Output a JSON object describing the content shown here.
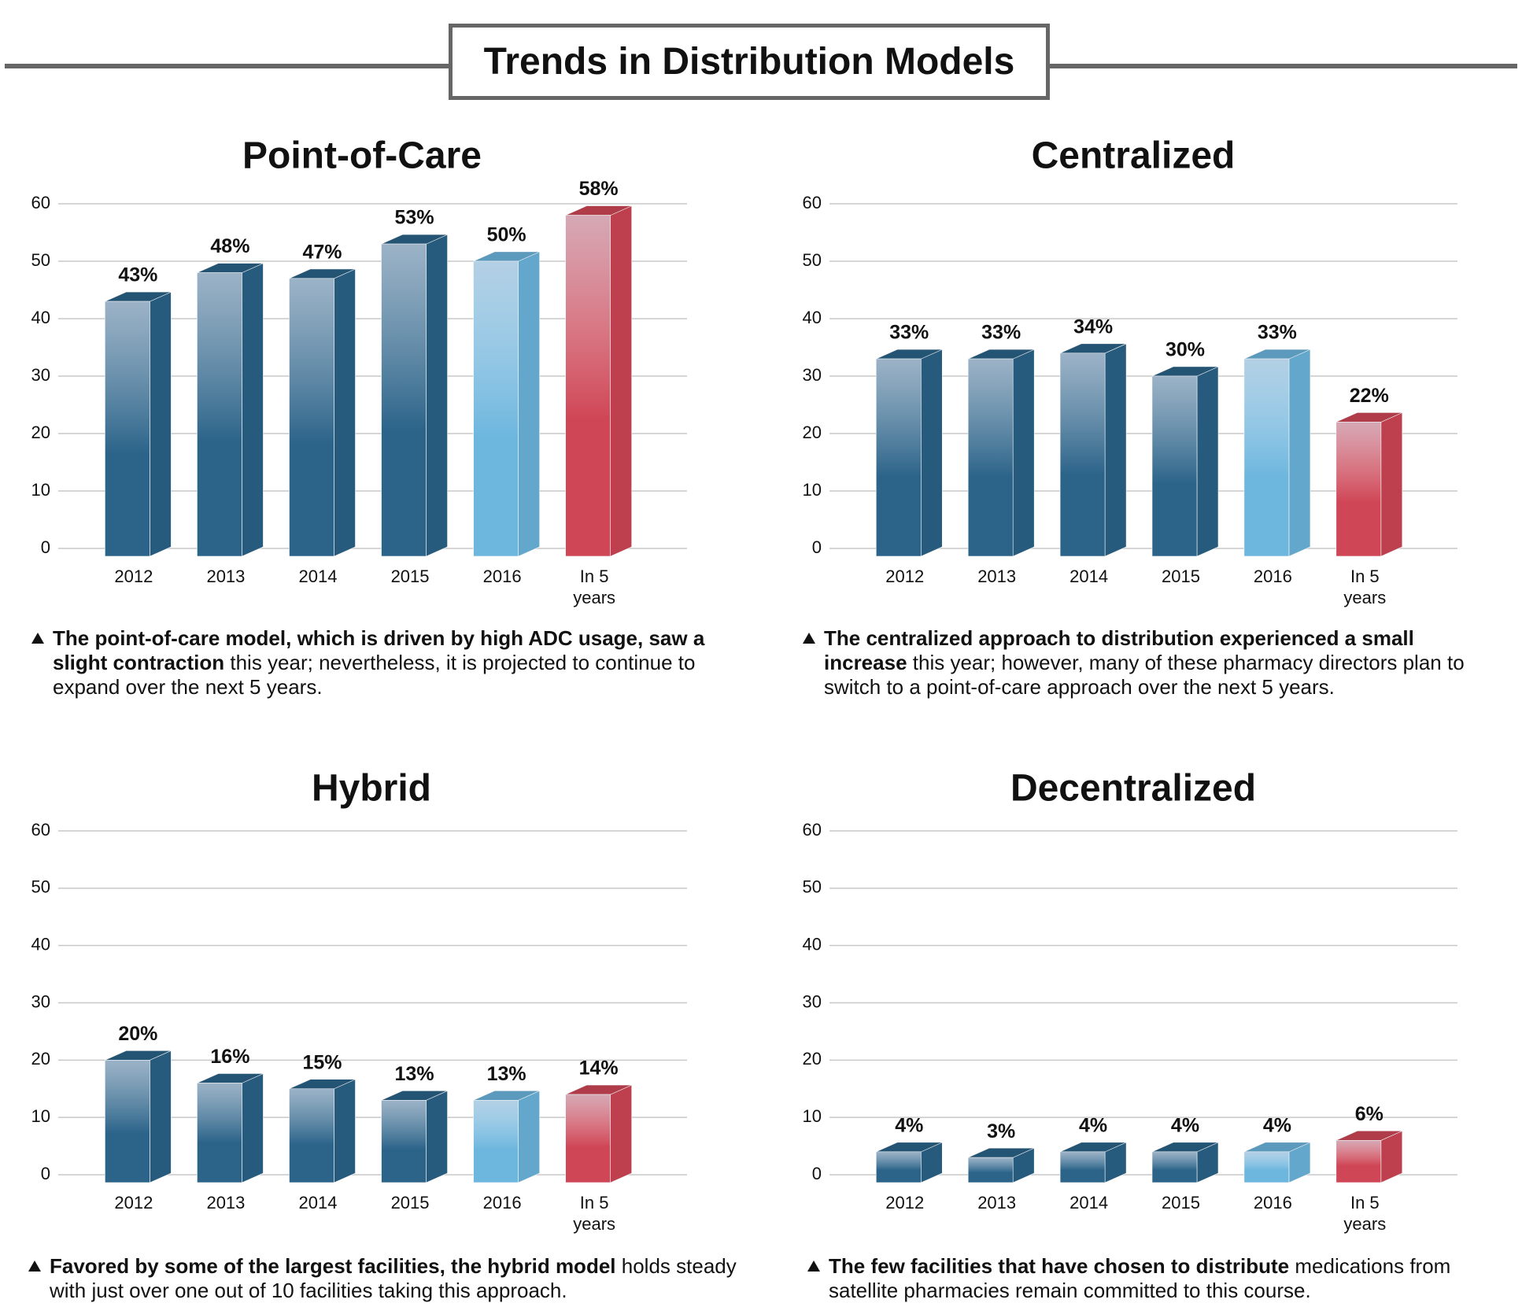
{
  "title": "Trends in Distribution Models",
  "chart_data": [
    {
      "type": "bar",
      "title": "Point-of-Care",
      "categories": [
        "2012",
        "2013",
        "2014",
        "2015",
        "2016",
        "In 5 years"
      ],
      "values": [
        43,
        48,
        47,
        53,
        50,
        58
      ],
      "value_labels": [
        "43%",
        "48%",
        "47%",
        "53%",
        "50%",
        "58%"
      ],
      "colors": [
        "#2b6389",
        "#2b6389",
        "#2b6389",
        "#2b6389",
        "#6db6de",
        "#cf4656"
      ],
      "ylim": [
        0,
        60
      ],
      "yticks": [
        0,
        10,
        20,
        30,
        40,
        50,
        60
      ],
      "grid": true,
      "note_bold": "The point-of-care model, which is driven by high ADC usage, saw a slight contraction",
      "note": "this year; nevertheless, it is projected to continue to expand over the next 5 years."
    },
    {
      "type": "bar",
      "title": "Centralized",
      "categories": [
        "2012",
        "2013",
        "2014",
        "2015",
        "2016",
        "In 5 years"
      ],
      "values": [
        33,
        33,
        34,
        30,
        33,
        22
      ],
      "value_labels": [
        "33%",
        "33%",
        "34%",
        "30%",
        "33%",
        "22%"
      ],
      "colors": [
        "#2b6389",
        "#2b6389",
        "#2b6389",
        "#2b6389",
        "#6db6de",
        "#cf4656"
      ],
      "ylim": [
        0,
        60
      ],
      "yticks": [
        0,
        10,
        20,
        30,
        40,
        50,
        60
      ],
      "grid": true,
      "note_bold": "The centralized approach to distribution experienced a small increase",
      "note": "this year; however, many of these pharmacy directors plan to switch to a point-of-care approach over the next 5 years."
    },
    {
      "type": "bar",
      "title": "Hybrid",
      "categories": [
        "2012",
        "2013",
        "2014",
        "2015",
        "2016",
        "In 5 years"
      ],
      "values": [
        20,
        16,
        15,
        13,
        13,
        14
      ],
      "value_labels": [
        "20%",
        "16%",
        "15%",
        "13%",
        "13%",
        "14%"
      ],
      "colors": [
        "#2b6389",
        "#2b6389",
        "#2b6389",
        "#2b6389",
        "#6db6de",
        "#cf4656"
      ],
      "ylim": [
        0,
        60
      ],
      "yticks": [
        0,
        10,
        20,
        30,
        40,
        50,
        60
      ],
      "grid": true,
      "note_bold": "Favored by some of the largest facilities, the hybrid model",
      "note": "holds steady with just over one out of 10 facilities taking this approach."
    },
    {
      "type": "bar",
      "title": "Decentralized",
      "categories": [
        "2012",
        "2013",
        "2014",
        "2015",
        "2016",
        "In 5 years"
      ],
      "values": [
        4,
        3,
        4,
        4,
        4,
        6
      ],
      "value_labels": [
        "4%",
        "3%",
        "4%",
        "4%",
        "4%",
        "6%"
      ],
      "colors": [
        "#2b6389",
        "#2b6389",
        "#2b6389",
        "#2b6389",
        "#6db6de",
        "#cf4656"
      ],
      "ylim": [
        0,
        60
      ],
      "yticks": [
        0,
        10,
        20,
        30,
        40,
        50,
        60
      ],
      "grid": true,
      "note_bold": "The few facilities that have chosen to distribute",
      "note": "medications from satellite pharmacies remain committed to this course."
    }
  ]
}
